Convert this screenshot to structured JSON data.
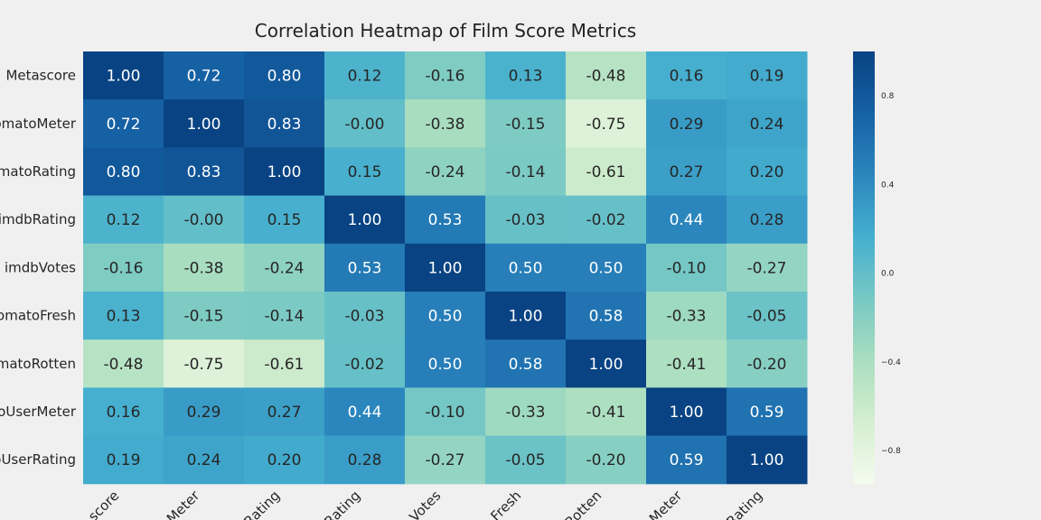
{
  "chart_data": {
    "type": "heatmap",
    "title": "Correlation Heatmap of Film Score Metrics",
    "row_labels": [
      "Metascore",
      "omatoMeter",
      "omatoRating",
      "imdbRating",
      "imdbVotes",
      "omatoFresh",
      "omatoRotten",
      "toUserMeter",
      "oUserRating"
    ],
    "column_labels": [
      "score",
      "Meter",
      "Rating",
      "Rating",
      "Votes",
      "Fresh",
      "Rotten",
      "Meter",
      "Rating"
    ],
    "matrix": [
      [
        "1.00",
        "0.72",
        "0.80",
        "0.12",
        "-0.16",
        "0.13",
        "-0.48",
        "0.16",
        "0.19"
      ],
      [
        "0.72",
        "1.00",
        "0.83",
        "-0.00",
        "-0.38",
        "-0.15",
        "-0.75",
        "0.29",
        "0.24"
      ],
      [
        "0.80",
        "0.83",
        "1.00",
        "0.15",
        "-0.24",
        "-0.14",
        "-0.61",
        "0.27",
        "0.20"
      ],
      [
        "0.12",
        "-0.00",
        "0.15",
        "1.00",
        "0.53",
        "-0.03",
        "-0.02",
        "0.44",
        "0.28"
      ],
      [
        "-0.16",
        "-0.38",
        "-0.24",
        "0.53",
        "1.00",
        "0.50",
        "0.50",
        "-0.10",
        "-0.27"
      ],
      [
        "0.13",
        "-0.15",
        "-0.14",
        "-0.03",
        "0.50",
        "1.00",
        "0.58",
        "-0.33",
        "-0.05"
      ],
      [
        "-0.48",
        "-0.75",
        "-0.61",
        "-0.02",
        "0.50",
        "0.58",
        "1.00",
        "-0.41",
        "-0.20"
      ],
      [
        "0.16",
        "0.29",
        "0.27",
        "0.44",
        "-0.10",
        "-0.33",
        "-0.41",
        "1.00",
        "0.59"
      ],
      [
        "0.19",
        "0.24",
        "0.20",
        "0.28",
        "-0.27",
        "-0.05",
        "-0.20",
        "0.59",
        "1.00"
      ]
    ],
    "colormap": "YlGnBu-like",
    "color_stops": [
      "#f3fbee",
      "#d5eed0",
      "#aadec0",
      "#77c8c4",
      "#45afcf",
      "#2b86bd",
      "#1661a4",
      "#094383"
    ],
    "vmin": -0.95,
    "vmax": 1.0,
    "colorbar_ticks": [
      "0.8",
      "0.4",
      "0.0",
      "−0.4",
      "−0.8"
    ],
    "grid": false
  }
}
